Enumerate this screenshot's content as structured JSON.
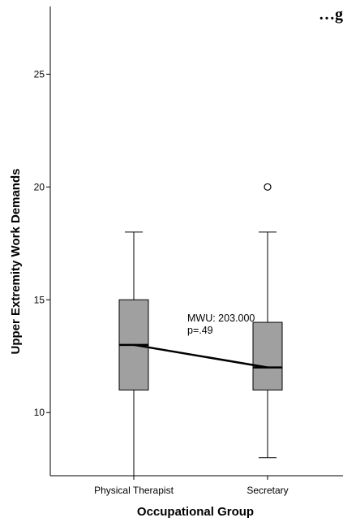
{
  "chart_data": {
    "type": "boxplot",
    "title": "…g",
    "xlabel": "Occupational Group",
    "ylabel": "Upper Extremity Work Demands",
    "ylim": [
      7.2,
      28
    ],
    "yticks": [
      10,
      15,
      20,
      25
    ],
    "categories": [
      "Physical Therapist",
      "Secretary"
    ],
    "boxes": [
      {
        "category": "Physical Therapist",
        "whisker_low": 7.2,
        "q1": 11,
        "median": 13,
        "q3": 15,
        "whisker_high": 18,
        "outliers": []
      },
      {
        "category": "Secretary",
        "whisker_low": 8,
        "q1": 11,
        "median": 12,
        "q3": 14,
        "whisker_high": 18,
        "outliers": [
          20
        ]
      }
    ],
    "median_connector": true,
    "annotation": [
      "MWU: 203.000",
      "p=.49"
    ],
    "colors": {
      "box_fill": "#a0a0a0",
      "stroke": "#000000"
    },
    "grid": false
  }
}
